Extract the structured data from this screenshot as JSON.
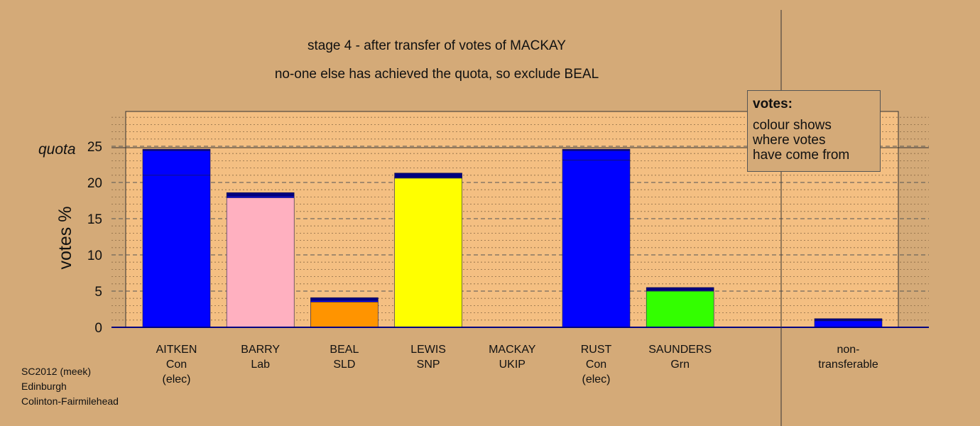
{
  "title_line1": "stage 4 - after transfer of votes of MACKAY",
  "title_line2": "no-one else has achieved the quota, so exclude BEAL",
  "ylabel": "votes %",
  "quota_label": "quota",
  "quota_value": 24.8,
  "legend": {
    "heading": "votes:",
    "text_lines": [
      "colour shows",
      "where votes",
      "have come from"
    ]
  },
  "credit_lines": [
    "SC2012 (meek)",
    "Edinburgh",
    "Colinton-Fairmilehead"
  ],
  "chart_data": {
    "type": "bar",
    "stacked": true,
    "ylim": [
      0,
      29.8
    ],
    "yticks": [
      0,
      5,
      10,
      15,
      20,
      25
    ],
    "major_gridlines": [
      5,
      10,
      15,
      20,
      25
    ],
    "minor_gridlines_step": 1,
    "candidates": [
      {
        "name": "AITKEN",
        "party": "Con",
        "status": "(elec)",
        "segments": [
          {
            "value": 21.0,
            "color": "#0000ff"
          },
          {
            "value": 3.4,
            "color": "#0000ff"
          },
          {
            "value": 0.2,
            "color": "#00007f"
          }
        ]
      },
      {
        "name": "BARRY",
        "party": "Lab",
        "status": "",
        "segments": [
          {
            "value": 17.9,
            "color": "#ffb0c0"
          },
          {
            "value": 0.2,
            "color": "#0000ff"
          },
          {
            "value": 0.5,
            "color": "#00007f"
          }
        ]
      },
      {
        "name": "BEAL",
        "party": "SLD",
        "status": "",
        "segments": [
          {
            "value": 3.5,
            "color": "#ff9400"
          },
          {
            "value": 0.2,
            "color": "#0000ff"
          },
          {
            "value": 0.4,
            "color": "#00007f"
          }
        ]
      },
      {
        "name": "LEWIS",
        "party": "SNP",
        "status": "",
        "segments": [
          {
            "value": 20.6,
            "color": "#ffff00"
          },
          {
            "value": 0.1,
            "color": "#0000ff"
          },
          {
            "value": 0.6,
            "color": "#00007f"
          }
        ]
      },
      {
        "name": "MACKAY",
        "party": "UKIP",
        "status": "",
        "segments": []
      },
      {
        "name": "RUST",
        "party": "Con",
        "status": "(elec)",
        "segments": [
          {
            "value": 23.1,
            "color": "#0000ff"
          },
          {
            "value": 1.3,
            "color": "#0000ff"
          },
          {
            "value": 0.2,
            "color": "#00007f"
          }
        ]
      },
      {
        "name": "SAUNDERS",
        "party": "Grn",
        "status": "",
        "segments": [
          {
            "value": 5.0,
            "color": "#33ff00"
          },
          {
            "value": 0.1,
            "color": "#0000ff"
          },
          {
            "value": 0.4,
            "color": "#00007f"
          }
        ]
      },
      {
        "name": "non-",
        "party": "transferable",
        "status": "",
        "segments": [
          {
            "value": 0.9,
            "color": "#0000ff"
          },
          {
            "value": 0.3,
            "color": "#00007f"
          }
        ]
      }
    ]
  },
  "colors": {
    "background": "#d4aa78",
    "plot_area": "#f4bf82",
    "frame": "#333333",
    "zero_line": "#000080"
  }
}
